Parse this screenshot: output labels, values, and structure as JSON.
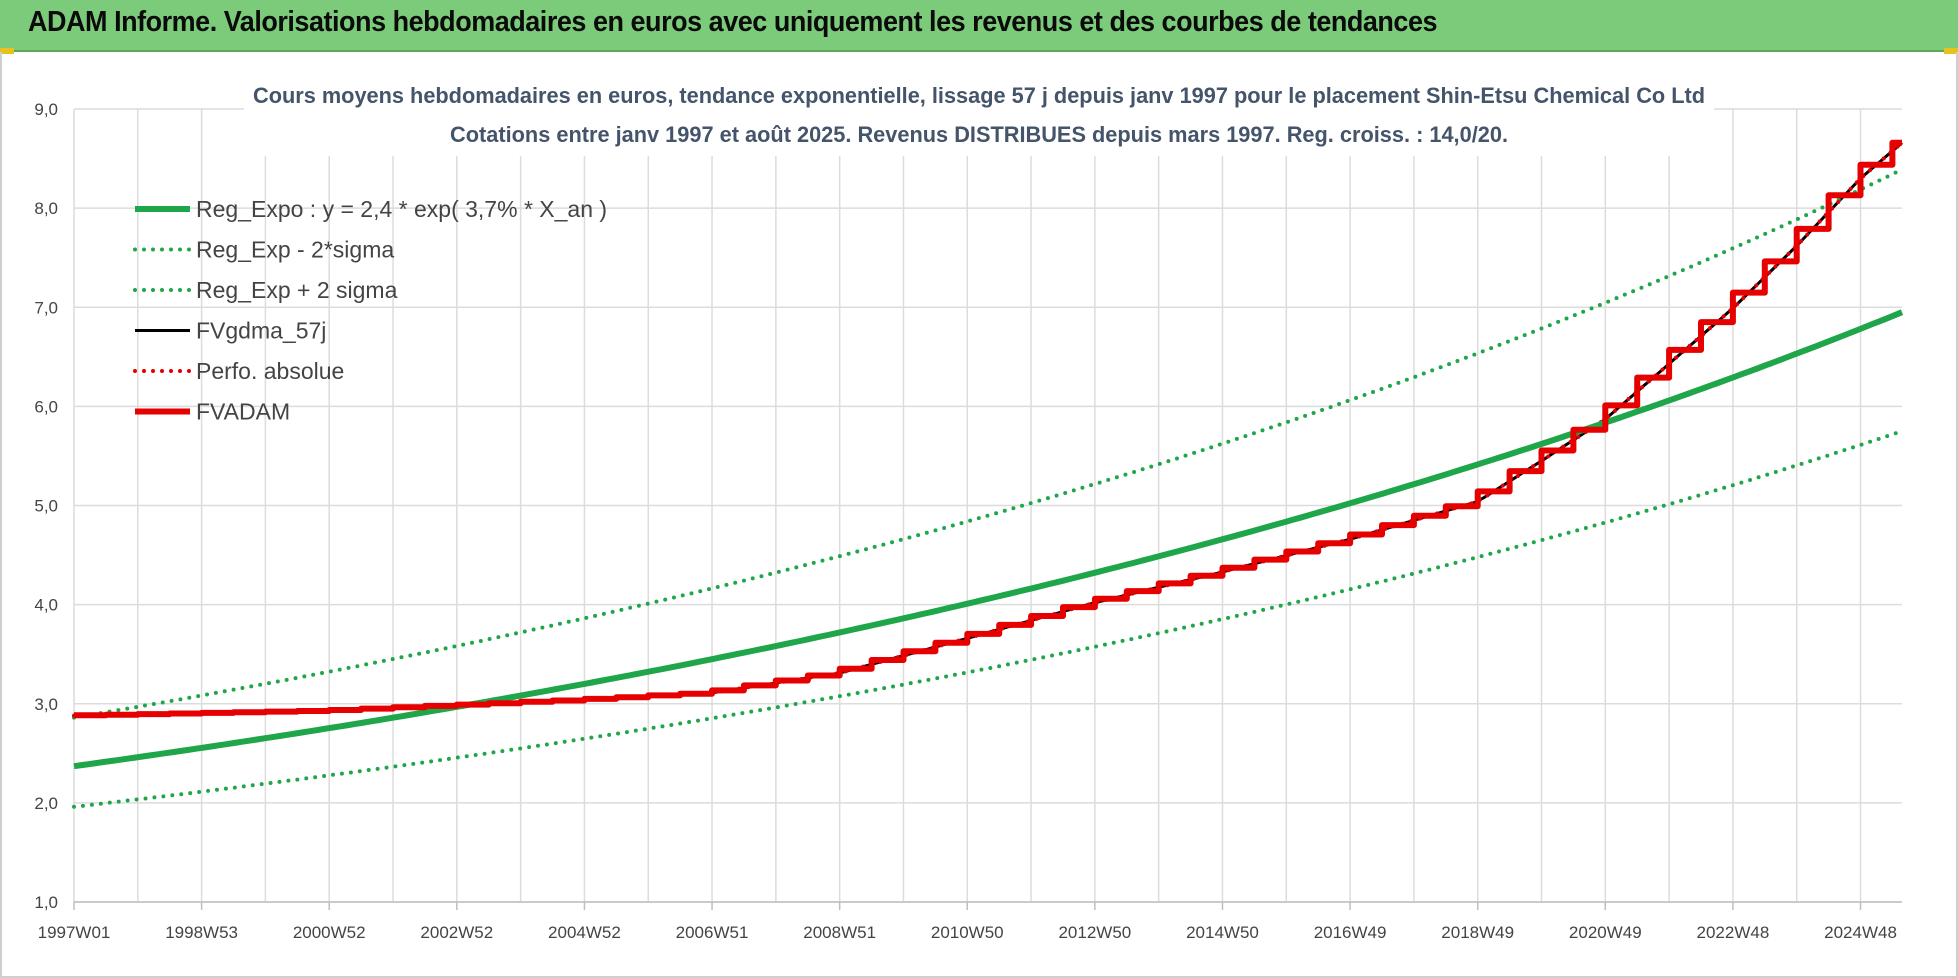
{
  "header": {
    "title": "ADAM Informe. Valorisations hebdomadaires en euros avec uniquement les revenus et des courbes de tendances"
  },
  "colors": {
    "header_bg": "#7ccb7a",
    "reg_expo": "#1fa64a",
    "reg_band": "#1fa64a",
    "fvgdma": "#000000",
    "perfo": "#e00000",
    "fvadam": "#e60000"
  },
  "chart_data": {
    "type": "line",
    "title": [
      "Cours moyens hebdomadaires en euros, tendance exponentielle, lissage 57 j depuis janv 1997 pour le placement Shin-Etsu Chemical Co Ltd",
      "Cotations entre janv 1997 et août 2025. Revenus DISTRIBUES depuis mars 1997. Reg. croiss. : 14,0/20."
    ],
    "ylim": [
      1,
      9
    ],
    "yticks": [
      "1,0",
      "2,0",
      "3,0",
      "4,0",
      "5,0",
      "6,0",
      "7,0",
      "8,0",
      "9,0"
    ],
    "xlim": [
      1997.0,
      2025.65
    ],
    "xticks": [
      {
        "label": "1997W01",
        "x": 1997.0
      },
      {
        "label": "1998W53",
        "x": 1999.0
      },
      {
        "label": "2000W52",
        "x": 2001.0
      },
      {
        "label": "2002W52",
        "x": 2003.0
      },
      {
        "label": "2004W52",
        "x": 2005.0
      },
      {
        "label": "2006W51",
        "x": 2007.0
      },
      {
        "label": "2008W51",
        "x": 2009.0
      },
      {
        "label": "2010W50",
        "x": 2011.0
      },
      {
        "label": "2012W50",
        "x": 2013.0
      },
      {
        "label": "2014W50",
        "x": 2015.0
      },
      {
        "label": "2016W49",
        "x": 2017.0
      },
      {
        "label": "2018W49",
        "x": 2019.0
      },
      {
        "label": "2020W49",
        "x": 2021.0
      },
      {
        "label": "2022W48",
        "x": 2023.0
      },
      {
        "label": "2024W48",
        "x": 2025.0
      }
    ],
    "grid": true,
    "legend_position": "top-left",
    "series": [
      {
        "name": "Reg_Expo : y = 2,4 * exp( 3,7% *  X_an )",
        "style": "solid-thick",
        "color": "#1fa64a",
        "x": [
          1997.0,
          2001.0,
          2005.0,
          2009.0,
          2013.0,
          2017.0,
          2021.0,
          2025.65
        ],
        "y": [
          2.37,
          2.75,
          3.19,
          3.7,
          4.32,
          5.01,
          5.82,
          6.95
        ]
      },
      {
        "name": "Reg_Exp - 2*sigma",
        "style": "dotted",
        "color": "#1fa64a",
        "x": [
          1997.0,
          2001.0,
          2005.0,
          2009.0,
          2013.0,
          2017.0,
          2021.0,
          2025.65
        ],
        "y": [
          1.96,
          2.28,
          2.64,
          3.06,
          3.57,
          4.14,
          4.81,
          5.75
        ]
      },
      {
        "name": "Reg_Exp + 2 sigma",
        "style": "dotted",
        "color": "#1fa64a",
        "x": [
          1997.0,
          2001.0,
          2005.0,
          2009.0,
          2013.0,
          2017.0,
          2021.0,
          2025.65
        ],
        "y": [
          2.86,
          3.32,
          3.85,
          4.47,
          5.22,
          6.05,
          7.03,
          8.39
        ]
      },
      {
        "name": "FVgdma_57j",
        "style": "solid",
        "color": "#000000",
        "x": [
          1997.0,
          2001.0,
          2005.0,
          2007.0,
          2009.0,
          2011.0,
          2013.0,
          2015.0,
          2017.0,
          2019.0,
          2020.0,
          2021.0,
          2022.0,
          2023.0,
          2024.0,
          2025.0,
          2025.65
        ],
        "y": [
          2.88,
          2.93,
          3.04,
          3.11,
          3.31,
          3.66,
          4.02,
          4.33,
          4.66,
          5.04,
          5.45,
          5.87,
          6.43,
          6.99,
          7.62,
          8.3,
          8.66
        ]
      },
      {
        "name": "Perfo. absolue",
        "style": "dotted",
        "color": "#e00000",
        "x": [
          1997.0,
          2001.0,
          2005.0,
          2007.0,
          2009.0,
          2011.0,
          2013.0,
          2015.0,
          2017.0,
          2019.0,
          2020.0,
          2021.0,
          2022.0,
          2023.0,
          2024.0,
          2025.0,
          2025.65
        ],
        "y": [
          2.88,
          2.93,
          3.04,
          3.11,
          3.31,
          3.66,
          4.02,
          4.33,
          4.66,
          5.04,
          5.45,
          5.87,
          6.43,
          6.99,
          7.62,
          8.3,
          8.66
        ]
      },
      {
        "name": "FVADAM",
        "style": "step-thick",
        "color": "#e60000",
        "x": [
          1997.0,
          2001.0,
          2005.0,
          2007.0,
          2009.0,
          2011.0,
          2013.0,
          2015.0,
          2017.0,
          2019.0,
          2020.0,
          2021.0,
          2022.0,
          2023.0,
          2024.0,
          2025.0,
          2025.65
        ],
        "y": [
          2.88,
          2.93,
          3.04,
          3.11,
          3.31,
          3.66,
          4.02,
          4.33,
          4.66,
          5.04,
          5.45,
          5.87,
          6.43,
          6.99,
          7.62,
          8.3,
          8.66
        ]
      }
    ]
  }
}
